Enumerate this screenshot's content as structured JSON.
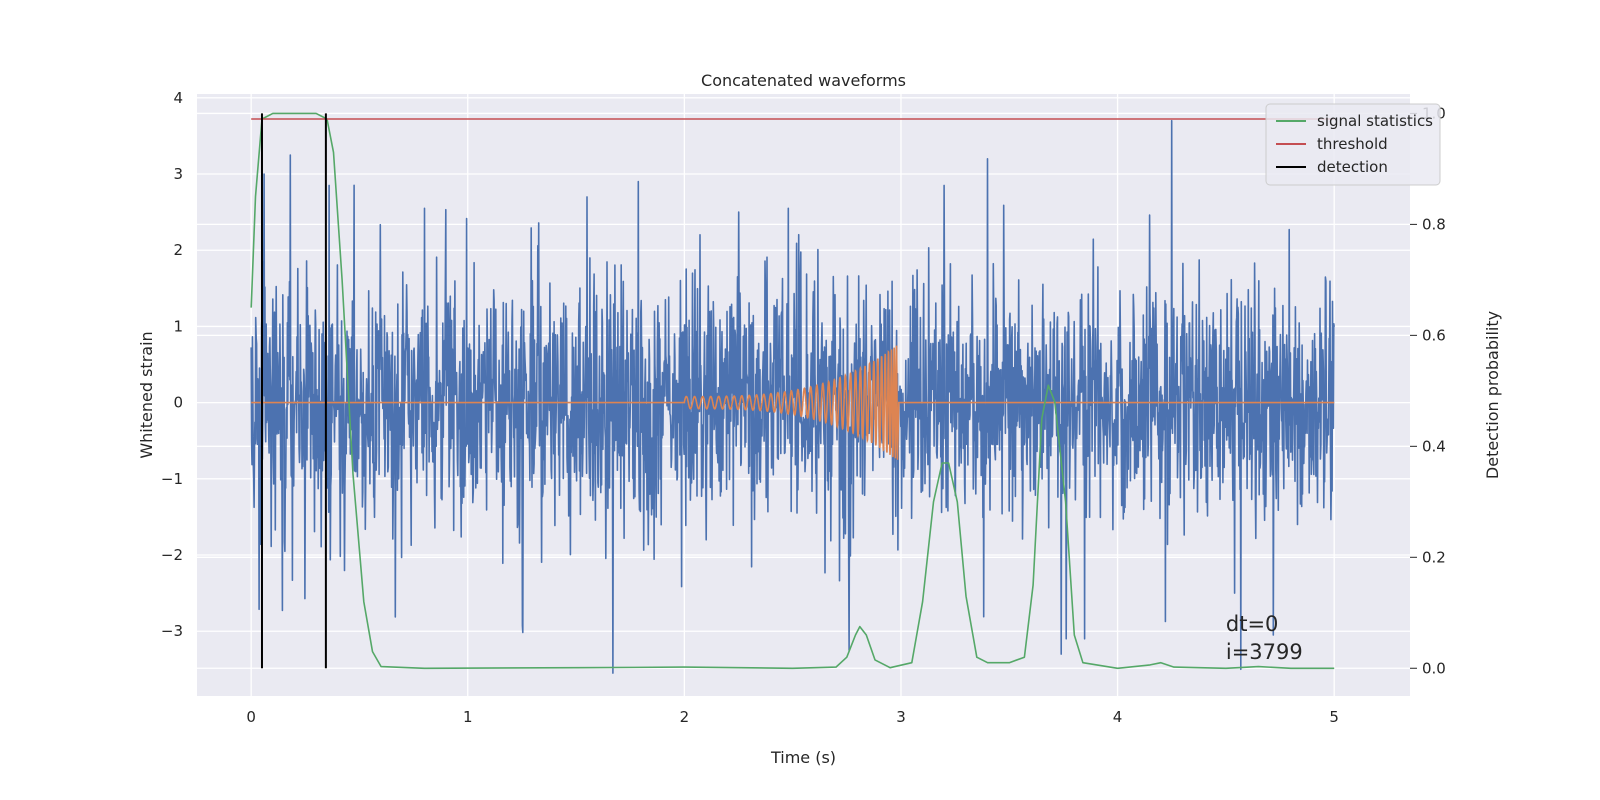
{
  "chart_data": {
    "type": "line",
    "title": "Concatenated waveforms",
    "xlabel": "Time (s)",
    "ylabel": "Whitened strain",
    "ylabel_right": "Detection probability",
    "xlim": [
      -0.25,
      5.35
    ],
    "ylim": [
      -3.85,
      4.05
    ],
    "ylim_right": [
      -0.05,
      1.035
    ],
    "x_ticks": [
      "0",
      "1",
      "2",
      "3",
      "4",
      "5"
    ],
    "y_ticks": [
      "4",
      "3",
      "2",
      "1",
      "0",
      "−1",
      "−2",
      "−3"
    ],
    "y_ticks_right": [
      "1.0",
      "0.8",
      "0.6",
      "0.4",
      "0.2",
      "0.0"
    ],
    "grid": true,
    "legend_position": "top-right",
    "legend": [
      "signal statistics",
      "threshold",
      "detection"
    ],
    "colors": {
      "strain": "#4c72b0",
      "injection": "#dd8452",
      "signal_statistics": "#55a868",
      "threshold": "#c44e52",
      "detection": "#000000",
      "background": "#eaeaf2",
      "grid": "#ffffff"
    },
    "series": [
      {
        "name": "",
        "axis": "left",
        "kind": "noise",
        "x_range": [
          0,
          5
        ],
        "typical_band": [
          -0.85,
          0.85
        ],
        "spikes": [
          {
            "x": 0.06,
            "y": 3.0
          },
          {
            "x": 0.18,
            "y": 3.25
          },
          {
            "x": 0.36,
            "y": 2.85
          },
          {
            "x": 0.8,
            "y": 2.55
          },
          {
            "x": 1.55,
            "y": 2.7
          },
          {
            "x": 1.67,
            "y": -3.55
          },
          {
            "x": 2.25,
            "y": 2.5
          },
          {
            "x": 2.48,
            "y": 2.55
          },
          {
            "x": 2.76,
            "y": -3.25
          },
          {
            "x": 3.2,
            "y": 2.85
          },
          {
            "x": 3.4,
            "y": 3.2
          },
          {
            "x": 3.74,
            "y": -3.3
          },
          {
            "x": 4.25,
            "y": 3.7
          },
          {
            "x": 4.57,
            "y": -3.5
          },
          {
            "x": 4.72,
            "y": -3.05
          }
        ]
      },
      {
        "name": "",
        "axis": "left",
        "kind": "chirp",
        "x_range": [
          2.0,
          2.98
        ],
        "start_amplitude": 0.08,
        "peak_amplitude": 0.75,
        "baseline": 0
      },
      {
        "name": "signal statistics",
        "axis": "right",
        "points": [
          [
            0.0,
            0.65
          ],
          [
            0.02,
            0.85
          ],
          [
            0.05,
            0.99
          ],
          [
            0.1,
            1.0
          ],
          [
            0.3,
            1.0
          ],
          [
            0.35,
            0.99
          ],
          [
            0.38,
            0.93
          ],
          [
            0.42,
            0.7
          ],
          [
            0.47,
            0.35
          ],
          [
            0.52,
            0.12
          ],
          [
            0.56,
            0.03
          ],
          [
            0.6,
            0.003
          ],
          [
            0.8,
            0.0
          ],
          [
            1.5,
            0.001
          ],
          [
            2.0,
            0.002
          ],
          [
            2.5,
            0.0
          ],
          [
            2.7,
            0.002
          ],
          [
            2.75,
            0.02
          ],
          [
            2.79,
            0.06
          ],
          [
            2.81,
            0.075
          ],
          [
            2.84,
            0.06
          ],
          [
            2.88,
            0.015
          ],
          [
            2.95,
            0.001
          ],
          [
            3.05,
            0.01
          ],
          [
            3.1,
            0.12
          ],
          [
            3.15,
            0.3
          ],
          [
            3.19,
            0.37
          ],
          [
            3.22,
            0.37
          ],
          [
            3.26,
            0.3
          ],
          [
            3.3,
            0.13
          ],
          [
            3.35,
            0.02
          ],
          [
            3.4,
            0.01
          ],
          [
            3.5,
            0.01
          ],
          [
            3.57,
            0.02
          ],
          [
            3.61,
            0.15
          ],
          [
            3.65,
            0.45
          ],
          [
            3.68,
            0.51
          ],
          [
            3.71,
            0.48
          ],
          [
            3.76,
            0.3
          ],
          [
            3.8,
            0.06
          ],
          [
            3.84,
            0.01
          ],
          [
            4.0,
            0.0
          ],
          [
            4.15,
            0.006
          ],
          [
            4.2,
            0.01
          ],
          [
            4.26,
            0.002
          ],
          [
            4.5,
            0.0
          ],
          [
            4.65,
            0.003
          ],
          [
            4.8,
            0.0
          ],
          [
            5.0,
            0.0
          ]
        ]
      },
      {
        "name": "threshold",
        "axis": "right",
        "points": [
          [
            0.0,
            0.99
          ],
          [
            5.0,
            0.99
          ]
        ]
      },
      {
        "name": "detection",
        "axis": "right",
        "vertical_lines": [
          0.05,
          0.345
        ],
        "y_range": [
          0,
          1.0
        ]
      }
    ],
    "annotations": [
      "dt=0",
      "i=3799"
    ]
  }
}
